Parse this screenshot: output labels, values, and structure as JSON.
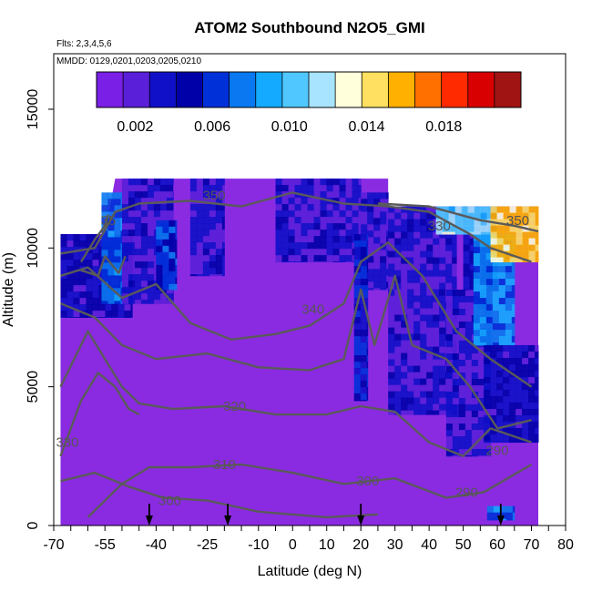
{
  "chart_data": {
    "type": "heatmap",
    "title": "ATOM2 Southbound N2O5_GMI",
    "annotations": {
      "flights": "Flts: 2,3,4,5,6",
      "dates": "MMDD: 0129,0201,0203,0205,0210"
    },
    "xlabel": "Latitude (deg N)",
    "ylabel": "Altitude (m)",
    "xlim": [
      -70,
      80
    ],
    "ylim": [
      0,
      17000
    ],
    "x_ticks": [
      -70,
      -55,
      -40,
      -25,
      -10,
      0,
      10,
      20,
      30,
      40,
      50,
      60,
      70,
      80
    ],
    "x_tick_labels": [
      "-70",
      "-55",
      "-40",
      "-25",
      "-10",
      "0",
      "10",
      "20",
      "30",
      "40",
      "50",
      "60",
      "70",
      "80"
    ],
    "y_ticks": [
      0,
      5000,
      10000,
      15000
    ],
    "y_tick_labels": [
      "0",
      "5000",
      "10000",
      "15000"
    ],
    "colorbar": {
      "range": [
        0,
        0.022
      ],
      "tick_values": [
        0.002,
        0.006,
        0.01,
        0.014,
        0.018
      ],
      "tick_labels": [
        "0.002",
        "0.006",
        "0.010",
        "0.014",
        "0.018"
      ],
      "colors": [
        "#7a1fe6",
        "#5a1fd8",
        "#1010c8",
        "#0000a8",
        "#0030d8",
        "#0a78f0",
        "#14aaff",
        "#50c8ff",
        "#a8e4ff",
        "#ffffdc",
        "#ffe060",
        "#ffb000",
        "#ff7000",
        "#ff2a00",
        "#d80000",
        "#a01414"
      ]
    },
    "background_value_color": "#8a2be2",
    "data_extent": {
      "lat_min": -68,
      "lat_max": 72,
      "alt_max_south": 10500,
      "alt_max_mid": 12500,
      "alt_max_north": 11500
    },
    "regions": [
      {
        "lat": [
          -68,
          -47
        ],
        "alt": [
          7500,
          10500
        ],
        "value": 0.004
      },
      {
        "lat": [
          -56,
          -50
        ],
        "alt": [
          8000,
          12000
        ],
        "value": 0.007
      },
      {
        "lat": [
          -50,
          -35
        ],
        "alt": [
          8000,
          12500
        ],
        "value": 0.003
      },
      {
        "lat": [
          -40,
          -34
        ],
        "alt": [
          8500,
          11000
        ],
        "value": 0.006
      },
      {
        "lat": [
          -30,
          -20
        ],
        "alt": [
          9000,
          12500
        ],
        "value": 0.003
      },
      {
        "lat": [
          -5,
          20
        ],
        "alt": [
          9500,
          12500
        ],
        "value": 0.003
      },
      {
        "lat": [
          20,
          28
        ],
        "alt": [
          8500,
          12000
        ],
        "value": 0.003
      },
      {
        "lat": [
          18,
          22
        ],
        "alt": [
          4500,
          10500
        ],
        "value": 0.005
      },
      {
        "lat": [
          28,
          48
        ],
        "alt": [
          4000,
          11500
        ],
        "value": 0.003
      },
      {
        "lat": [
          45,
          58
        ],
        "alt": [
          2500,
          8500
        ],
        "value": 0.003
      },
      {
        "lat": [
          50,
          60
        ],
        "alt": [
          8500,
          11500
        ],
        "value": 0.004
      },
      {
        "lat": [
          53,
          65
        ],
        "alt": [
          6500,
          10500
        ],
        "value": 0.008
      },
      {
        "lat": [
          56,
          72
        ],
        "alt": [
          3000,
          6500
        ],
        "value": 0.004
      },
      {
        "lat": [
          42,
          58
        ],
        "alt": [
          10500,
          11500
        ],
        "value": 0.011
      },
      {
        "lat": [
          58,
          72
        ],
        "alt": [
          9500,
          11500
        ],
        "value": 0.015
      },
      {
        "lat": [
          57,
          65
        ],
        "alt": [
          200,
          700
        ],
        "value": 0.007
      }
    ],
    "contours": {
      "level_labels": [
        {
          "text": "350",
          "lat": -23,
          "alt": 11900
        },
        {
          "text": "330",
          "lat": 43,
          "alt": 10800
        },
        {
          "text": "350",
          "lat": 66,
          "alt": 11000
        },
        {
          "text": "340",
          "lat": 6,
          "alt": 7800
        },
        {
          "text": "320",
          "lat": -17,
          "alt": 4300
        },
        {
          "text": "310",
          "lat": -20,
          "alt": 2200
        },
        {
          "text": "300",
          "lat": -36,
          "alt": 900
        },
        {
          "text": "300",
          "lat": 22,
          "alt": 1600
        },
        {
          "text": "290",
          "lat": 51,
          "alt": 1200
        },
        {
          "text": "290",
          "lat": 60,
          "alt": 2700
        },
        {
          "text": "330",
          "lat": -66,
          "alt": 3000
        },
        {
          "text": "35",
          "lat": -54,
          "alt": 11000
        }
      ],
      "lines": [
        [
          [
            -68,
            2500
          ],
          [
            -62,
            4500
          ],
          [
            -57,
            5500
          ],
          [
            -52,
            5000
          ],
          [
            -48,
            4200
          ],
          [
            -45,
            4000
          ]
        ],
        [
          [
            -68,
            1600
          ],
          [
            -58,
            1900
          ],
          [
            -48,
            1400
          ],
          [
            -38,
            1000
          ],
          [
            -25,
            900
          ],
          [
            -10,
            500
          ],
          [
            10,
            300
          ],
          [
            25,
            400
          ]
        ],
        [
          [
            -60,
            300
          ],
          [
            -50,
            1500
          ],
          [
            -42,
            2100
          ],
          [
            -30,
            2100
          ],
          [
            -15,
            2200
          ],
          [
            0,
            1900
          ],
          [
            15,
            1500
          ],
          [
            30,
            1700
          ],
          [
            45,
            1000
          ],
          [
            56,
            1200
          ],
          [
            70,
            2200
          ]
        ],
        [
          [
            -68,
            5000
          ],
          [
            -60,
            7000
          ],
          [
            -50,
            5000
          ],
          [
            -45,
            4400
          ],
          [
            -35,
            4200
          ],
          [
            -20,
            4300
          ],
          [
            -5,
            4000
          ],
          [
            10,
            4000
          ],
          [
            20,
            4300
          ],
          [
            30,
            4100
          ],
          [
            40,
            3000
          ],
          [
            50,
            2500
          ],
          [
            58,
            3500
          ],
          [
            70,
            3000
          ]
        ],
        [
          [
            -68,
            8000
          ],
          [
            -58,
            7500
          ],
          [
            -50,
            6500
          ],
          [
            -40,
            6000
          ],
          [
            -25,
            6200
          ],
          [
            -10,
            5700
          ],
          [
            5,
            5600
          ],
          [
            15,
            6000
          ],
          [
            20,
            8500
          ],
          [
            24,
            6500
          ],
          [
            30,
            9000
          ],
          [
            35,
            6500
          ],
          [
            45,
            6000
          ],
          [
            52,
            5000
          ],
          [
            60,
            3500
          ],
          [
            70,
            3800
          ]
        ],
        [
          [
            -68,
            9000
          ],
          [
            -60,
            9300
          ],
          [
            -50,
            8200
          ],
          [
            -40,
            8700
          ],
          [
            -30,
            7300
          ],
          [
            -18,
            6700
          ],
          [
            -5,
            6900
          ],
          [
            5,
            7200
          ],
          [
            15,
            8000
          ],
          [
            20,
            9500
          ],
          [
            28,
            10200
          ],
          [
            38,
            9000
          ],
          [
            48,
            7000
          ],
          [
            58,
            6000
          ],
          [
            70,
            5000
          ]
        ],
        [
          [
            -68,
            9800
          ],
          [
            -58,
            10000
          ],
          [
            -52,
            11300
          ],
          [
            -45,
            11600
          ],
          [
            -30,
            11700
          ],
          [
            -15,
            11500
          ],
          [
            0,
            12000
          ],
          [
            15,
            11600
          ],
          [
            28,
            11500
          ],
          [
            40,
            11300
          ],
          [
            52,
            10500
          ],
          [
            58,
            10000
          ],
          [
            70,
            9500
          ]
        ],
        [
          [
            25,
            11600
          ],
          [
            40,
            11500
          ],
          [
            55,
            11000
          ],
          [
            65,
            10800
          ],
          [
            72,
            10600
          ]
        ],
        [
          [
            -62,
            9500
          ],
          [
            -58,
            10300
          ],
          [
            -55,
            10800
          ],
          [
            -54,
            11200
          ]
        ],
        [
          [
            -62,
            9200
          ],
          [
            -57,
            9000
          ],
          [
            -55,
            9700
          ],
          [
            -51,
            9100
          ],
          [
            -49,
            9700
          ]
        ]
      ]
    },
    "flight_markers_lat": [
      -42,
      -19,
      20,
      61
    ]
  }
}
